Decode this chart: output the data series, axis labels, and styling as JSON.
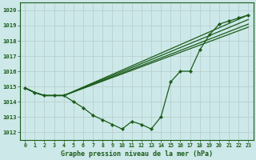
{
  "title": "Graphe pression niveau de la mer (hPa)",
  "background_color": "#cde8e8",
  "grid_color": "#b8d0d0",
  "line_color": "#1a5c1a",
  "xlim": [
    -0.5,
    23.5
  ],
  "ylim": [
    1011.5,
    1020.5
  ],
  "xticks": [
    0,
    1,
    2,
    3,
    4,
    5,
    6,
    7,
    8,
    9,
    10,
    11,
    12,
    13,
    14,
    15,
    16,
    17,
    18,
    19,
    20,
    21,
    22,
    23
  ],
  "yticks": [
    1012,
    1013,
    1014,
    1015,
    1016,
    1017,
    1018,
    1019,
    1020
  ],
  "line1_x": [
    0,
    1,
    2,
    3,
    4,
    23
  ],
  "line1_y": [
    1014.9,
    1014.6,
    1014.4,
    1014.4,
    1014.4,
    1019.7
  ],
  "line2_x": [
    0,
    1,
    2,
    3,
    4,
    23
  ],
  "line2_y": [
    1014.9,
    1014.6,
    1014.4,
    1014.4,
    1014.4,
    1019.4
  ],
  "line3_x": [
    0,
    1,
    2,
    3,
    4,
    23
  ],
  "line3_y": [
    1014.9,
    1014.6,
    1014.4,
    1014.4,
    1014.4,
    1019.1
  ],
  "line4_x": [
    0,
    1,
    2,
    3,
    4,
    23
  ],
  "line4_y": [
    1014.9,
    1014.6,
    1014.4,
    1014.4,
    1014.4,
    1018.9
  ],
  "main_x": [
    0,
    1,
    2,
    3,
    4,
    5,
    6,
    7,
    8,
    9,
    10,
    11,
    12,
    13,
    14,
    15,
    16,
    17,
    18,
    19,
    20,
    21,
    22,
    23
  ],
  "main_y": [
    1014.9,
    1014.6,
    1014.4,
    1014.4,
    1014.4,
    1014.0,
    1013.6,
    1013.1,
    1012.8,
    1012.5,
    1012.2,
    1012.7,
    1012.5,
    1012.2,
    1013.0,
    1015.3,
    1016.0,
    1016.0,
    1017.4,
    1018.4,
    1019.1,
    1019.3,
    1019.5,
    1019.7
  ]
}
